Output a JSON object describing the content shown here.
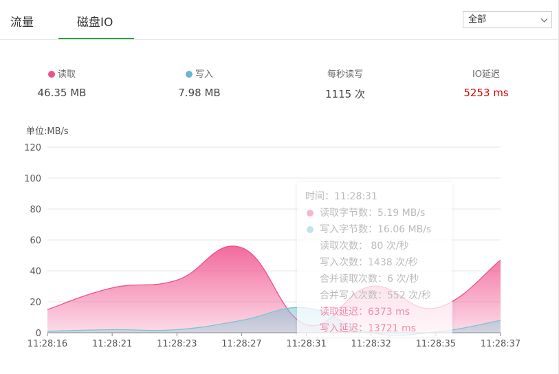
{
  "tabs": [
    "流量",
    "磁盘IO"
  ],
  "select": "全部",
  "stats": [
    {
      "label": "读取",
      "value": "46.35 MB",
      "dot": "#f0508a"
    },
    {
      "label": "写入",
      "value": "7.98 MB",
      "dot": "#66b8cc"
    },
    {
      "label": "每秒读写",
      "value": "1115 次"
    },
    {
      "label": "IO延迟",
      "value": "5253 ms",
      "color": "#e00000"
    }
  ],
  "chart_data": {
    "type": "area",
    "unit_label": "单位:MB/s",
    "categories": [
      "11:28:16",
      "11:28:21",
      "11:28:23",
      "11:28:27",
      "11:28:31",
      "11:28:32",
      "11:28:35",
      "11:28:37"
    ],
    "series": [
      {
        "name": "读取",
        "color": "#f0508a",
        "values": [
          15,
          29,
          34,
          55,
          5.19,
          30,
          16,
          47
        ]
      },
      {
        "name": "写入",
        "color": "#7cc4d4",
        "values": [
          1,
          2,
          2,
          8,
          16.06,
          0,
          0.5,
          8
        ]
      }
    ],
    "ylim": [
      0,
      120
    ],
    "yticks": [
      0,
      20,
      40,
      60,
      80,
      100,
      120
    ],
    "grid": true
  },
  "tooltip": {
    "lines": [
      {
        "text": "时间：11:28:31"
      },
      {
        "text": "读取字节数：5.19 MB/s",
        "dot": "#f5b8cc"
      },
      {
        "text": "写入字节数：16.06 MB/s",
        "dot": "#bfe4ea"
      },
      {
        "text": "读取次数： 80 次/秒"
      },
      {
        "text": "写入次数：1438 次/秒"
      },
      {
        "text": "合并读取次数：6 次/秒"
      },
      {
        "text": "合并写入次数：552 次/秒"
      },
      {
        "text": "读取延迟：6373 ms",
        "color": "#f08aa8"
      },
      {
        "text": "写入延迟：13721 ms",
        "color": "#f08aa8"
      }
    ]
  }
}
